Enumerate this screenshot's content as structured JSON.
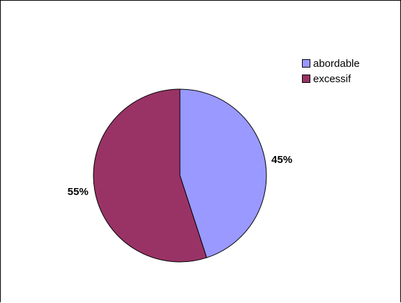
{
  "chart_data": {
    "type": "pie",
    "categories": [
      "abordable",
      "excessif"
    ],
    "values": [
      45,
      55
    ],
    "data_labels": [
      "45%",
      "55%"
    ],
    "colors": [
      "#9999ff",
      "#993366"
    ],
    "start_angle": "12 o'clock, clockwise",
    "legend": "right",
    "title": ""
  }
}
